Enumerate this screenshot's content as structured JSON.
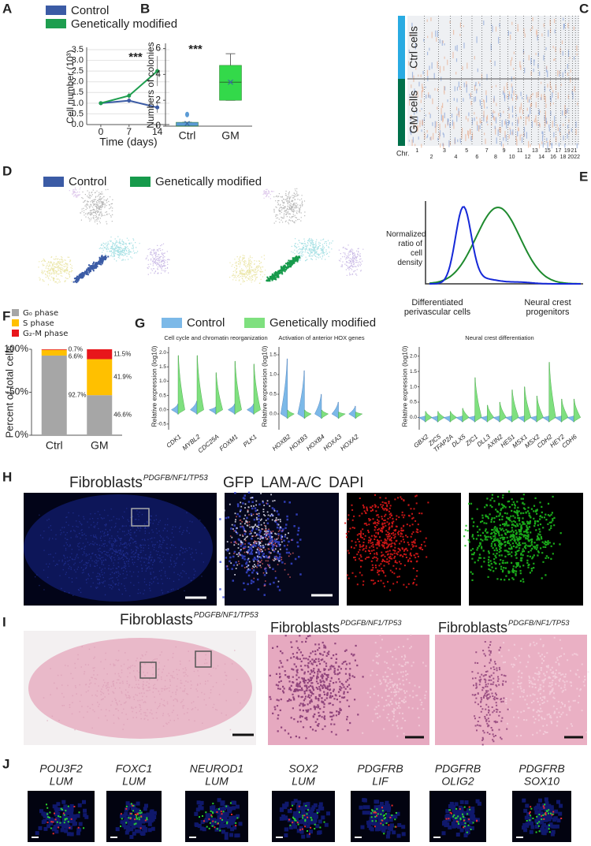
{
  "chart_data": [
    {
      "type": "line",
      "panel": "A",
      "y_label": "Cell number (10³)",
      "x_label": "Time (days)",
      "annotation": "***",
      "x": [
        0,
        7,
        14
      ],
      "xlim": [
        -3.5,
        17
      ],
      "xticks": [
        0,
        7,
        14
      ],
      "ylim": [
        0,
        3.5
      ],
      "yticks": [
        {
          "value": 0,
          "label": "0.0"
        },
        0.5,
        {
          "value": 1,
          "label": "1.0"
        },
        1.5,
        {
          "value": 2,
          "label": "2.0"
        },
        2.5,
        {
          "value": 3,
          "label": "3.0"
        },
        3.5
      ],
      "grid": true,
      "series": [
        {
          "name": "Control",
          "color": "#3b5ba5",
          "values": [
            1.0,
            1.12,
            0.8
          ],
          "errors": [
            0.03,
            0.1,
            0.25
          ]
        },
        {
          "name": "Genetically modified",
          "color": "#1e9e4f",
          "values": [
            1.0,
            1.35,
            2.5
          ],
          "errors": [
            0.03,
            0.15,
            0.7
          ]
        }
      ]
    },
    {
      "type": "box",
      "panel": "B",
      "y_label": "Numbers of colonies",
      "annotation": "***",
      "categories": [
        "Ctrl",
        "GM"
      ],
      "colors": [
        "#5b9bd5",
        "#33d94a"
      ],
      "ylim": [
        0,
        6.4
      ],
      "yticks": [
        0,
        2,
        4,
        6
      ],
      "boxes": [
        {
          "whisker_low": 0,
          "q1": 0,
          "median": 0,
          "q3": 0.3,
          "whisker_high": 0.3,
          "mean": 0.2,
          "outliers": [
            0.9
          ]
        },
        {
          "whisker_low": 2.0,
          "q1": 2.0,
          "median": 3.4,
          "q3": 4.7,
          "whisker_high": 5.6,
          "mean": 3.4,
          "outliers": []
        }
      ]
    },
    {
      "type": "stacked_bar",
      "panel": "F",
      "y_label": "Percent of total cells",
      "categories": [
        "Ctrl",
        "GM"
      ],
      "ylim": [
        0,
        100
      ],
      "yticks": [
        {
          "value": 0,
          "label": "0%"
        },
        {
          "value": 50,
          "label": "50%"
        },
        {
          "value": 100,
          "label": "100%"
        }
      ],
      "series": [
        {
          "name": "G₀ phase",
          "color": "#a6a6a6",
          "values": [
            92.7,
            46.6
          ],
          "value_labels": [
            "92.7%",
            "46.6%"
          ]
        },
        {
          "name": "S phase",
          "color": "#ffc000",
          "values": [
            6.6,
            41.9
          ],
          "value_labels": [
            "6.6%",
            "41.9%"
          ]
        },
        {
          "name": "G₂-M phase",
          "color": "#e8161b",
          "values": [
            0.7,
            11.5
          ],
          "value_labels": [
            "0.7%",
            "11.5%"
          ]
        }
      ]
    },
    {
      "type": "violin",
      "panel": "G",
      "legend": [
        {
          "name": "Control",
          "color": "#7cb9e8"
        },
        {
          "name": "Genetically modified",
          "color": "#7fe07f"
        }
      ],
      "groups": [
        {
          "title": "Cell cycle and chromatin reorganization",
          "y_label": "Relative expression (log10)",
          "genes": [
            "CDK1",
            "MYBL2",
            "CDC25A",
            "FOXM1",
            "PLK1"
          ],
          "ylim": [
            -0.7,
            2.2
          ],
          "yticks": [
            -0.5,
            {
              "value": 0,
              "label": "0.0"
            },
            0.5,
            {
              "value": 1,
              "label": "1.0"
            },
            1.5,
            {
              "value": 2,
              "label": "2.0"
            }
          ],
          "series": [
            {
              "values": [
                0.2,
                0.3,
                0.1,
                0.2,
                0.2
              ]
            },
            {
              "values": [
                1.9,
                1.9,
                1.3,
                1.7,
                1.6
              ]
            }
          ]
        },
        {
          "title": "Activation of anterior HOX genes",
          "y_label": "Relative expression (log10)",
          "genes": [
            "HOXB2",
            "HOXB3",
            "HOXB4",
            "HOXA3",
            "HOXA2"
          ],
          "ylim": [
            -0.4,
            1.7
          ],
          "yticks": [
            {
              "value": 0,
              "label": "0.0"
            },
            0.5,
            {
              "value": 1,
              "label": "1.0"
            },
            1.5
          ],
          "series": [
            {
              "values": [
                1.4,
                1.1,
                0.5,
                0.3,
                0.2
              ]
            },
            {
              "values": [
                0.1,
                0.1,
                0.1,
                0.05,
                0.05
              ]
            }
          ]
        },
        {
          "title": "Neural crest differentiation",
          "y_label": "Relative expression (log10)",
          "genes": [
            "GBX2",
            "ZIC5",
            "TFAP2A",
            "DLX5",
            "ZIC1",
            "DLL3",
            "AXIN2",
            "HES1",
            "MSX1",
            "MSX2",
            "CDH2",
            "HEY2",
            "CDH6"
          ],
          "ylim": [
            -0.4,
            2.3
          ],
          "yticks": [
            {
              "value": 0,
              "label": "0.0"
            },
            0.5,
            {
              "value": 1,
              "label": "1.0"
            },
            1.5,
            {
              "value": 2,
              "label": "2.0"
            }
          ],
          "series": [
            {
              "values": [
                0.05,
                0.05,
                0.05,
                0.05,
                0.05,
                0.05,
                0.05,
                0.05,
                0.05,
                0.05,
                0.05,
                0.05,
                0.05
              ]
            },
            {
              "values": [
                0.2,
                0.2,
                0.2,
                0.3,
                1.3,
                0.4,
                0.5,
                0.9,
                1.0,
                0.7,
                1.8,
                0.6,
                0.6
              ]
            }
          ]
        }
      ]
    }
  ],
  "heatmap": {
    "panel": "C",
    "row_labels": [
      "Ctrl cells",
      "GM cells"
    ],
    "axis_label": "Chr.",
    "chromosomes": [
      1,
      2,
      3,
      4,
      5,
      6,
      7,
      8,
      9,
      10,
      11,
      12,
      13,
      14,
      15,
      16,
      17,
      18,
      19,
      20,
      21,
      22
    ]
  },
  "umap": {
    "panel": "D",
    "legend": [
      {
        "name": "Control",
        "color": "#3b5ba5"
      },
      {
        "name": "Genetically modified",
        "color": "#169a4b"
      }
    ]
  },
  "density": {
    "panel": "E",
    "y_label": "Normalized ratio of cell density",
    "x_labels": [
      "Differentiated perivascular cells",
      "Neural crest progenitors"
    ]
  },
  "immunofluorescence": {
    "panel": "H",
    "title": {
      "text": "Fibroblasts",
      "superscript": "PDGFB/NF1/TP53"
    },
    "stains": [
      {
        "text": "GFP",
        "color": "#22b14c"
      },
      {
        "text": "LAM-A/C",
        "color": "#e8161b"
      },
      {
        "text": "DAPI",
        "color": "#2233dd"
      }
    ]
  },
  "histology": {
    "panel": "I",
    "titles": [
      {
        "text": "Fibroblasts",
        "superscript": "PDGFB/NF1/TP53"
      },
      {
        "text": "Fibroblasts",
        "superscript": "PDGFB/NF1/TP53"
      },
      {
        "text": "Fibroblasts",
        "superscript": "PDGFB/NF1/TP53"
      }
    ]
  },
  "ish": {
    "panel": "J",
    "probes": [
      {
        "top": "POU3F2",
        "bottom": "LUM"
      },
      {
        "top": "FOXC1",
        "bottom": "LUM"
      },
      {
        "top": "NEUROD1",
        "bottom": "LUM"
      },
      {
        "top": "SOX2",
        "bottom": "LUM"
      },
      {
        "top": "PDGFRB",
        "bottom": "LIF"
      },
      {
        "top": "PDGFRB",
        "bottom": "OLIG2"
      },
      {
        "top": "PDGFRB",
        "bottom": "SOX10"
      }
    ]
  }
}
